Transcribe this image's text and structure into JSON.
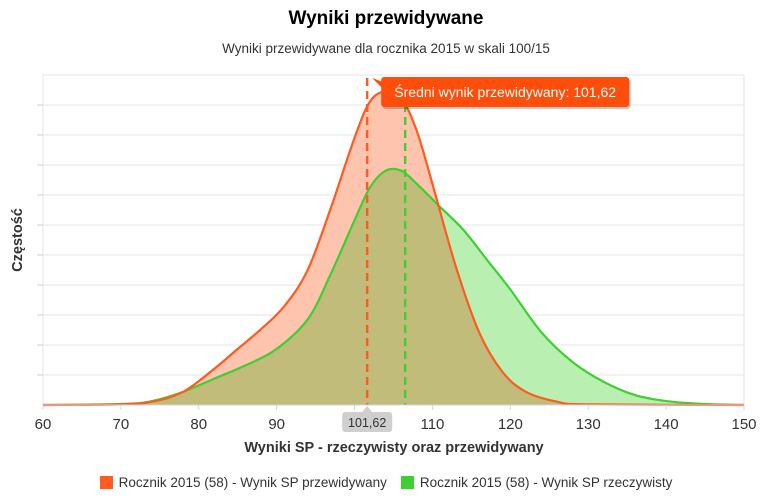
{
  "chart_data": {
    "type": "area",
    "title": "Wyniki przewidywane",
    "subtitle": "Wyniki przewidywane dla rocznika 2015 w skali 100/15",
    "xlabel": "Wyniki SP - rzeczywisty oraz przewidywany",
    "ylabel": "Częstość",
    "xlim": [
      60,
      150
    ],
    "ylim": [
      0,
      1
    ],
    "x_ticks": [
      "60",
      "70",
      "80",
      "90",
      "100",
      "110",
      "120",
      "130",
      "140",
      "150"
    ],
    "grid": true,
    "legend_position": "bottom",
    "series": [
      {
        "name": "Rocznik 2015 (58) - Wynik SP przewidywany",
        "color": "#ff5a1f",
        "fill": "#ffc4ae",
        "points": [
          [
            60,
            0.0
          ],
          [
            70,
            0.002
          ],
          [
            74,
            0.01
          ],
          [
            78,
            0.04
          ],
          [
            82,
            0.11
          ],
          [
            85,
            0.17
          ],
          [
            88,
            0.23
          ],
          [
            91,
            0.3
          ],
          [
            94,
            0.41
          ],
          [
            97,
            0.6
          ],
          [
            100,
            0.81
          ],
          [
            102,
            0.92
          ],
          [
            104,
            0.95
          ],
          [
            106,
            0.93
          ],
          [
            108,
            0.83
          ],
          [
            110,
            0.67
          ],
          [
            113,
            0.42
          ],
          [
            116,
            0.22
          ],
          [
            119,
            0.1
          ],
          [
            122,
            0.04
          ],
          [
            126,
            0.01
          ],
          [
            130,
            0.002
          ],
          [
            150,
            0.0
          ]
        ]
      },
      {
        "name": "Rocznik 2015 (58) - Wynik SP rzeczywisty",
        "color": "#3fcf33",
        "fill": "#b9f0b2",
        "points": [
          [
            60,
            0.0
          ],
          [
            70,
            0.003
          ],
          [
            74,
            0.012
          ],
          [
            78,
            0.04
          ],
          [
            82,
            0.08
          ],
          [
            86,
            0.12
          ],
          [
            90,
            0.17
          ],
          [
            94,
            0.26
          ],
          [
            97,
            0.4
          ],
          [
            100,
            0.56
          ],
          [
            102,
            0.66
          ],
          [
            104,
            0.71
          ],
          [
            106,
            0.71
          ],
          [
            108,
            0.67
          ],
          [
            111,
            0.6
          ],
          [
            114,
            0.53
          ],
          [
            117,
            0.44
          ],
          [
            120,
            0.35
          ],
          [
            124,
            0.22
          ],
          [
            128,
            0.13
          ],
          [
            132,
            0.07
          ],
          [
            136,
            0.03
          ],
          [
            140,
            0.012
          ],
          [
            145,
            0.003
          ],
          [
            150,
            0.0
          ]
        ]
      }
    ],
    "overlap_fill": "#c1bc79",
    "plot_lines": [
      {
        "value": 101.62,
        "color": "#ff5a1f",
        "label": "101,62"
      },
      {
        "value": 106.5,
        "color": "#3fcf33",
        "label": ""
      }
    ],
    "tooltip": {
      "text": "Średni wynik przewidywany: 101,62",
      "background": "#ff4d0c"
    }
  }
}
